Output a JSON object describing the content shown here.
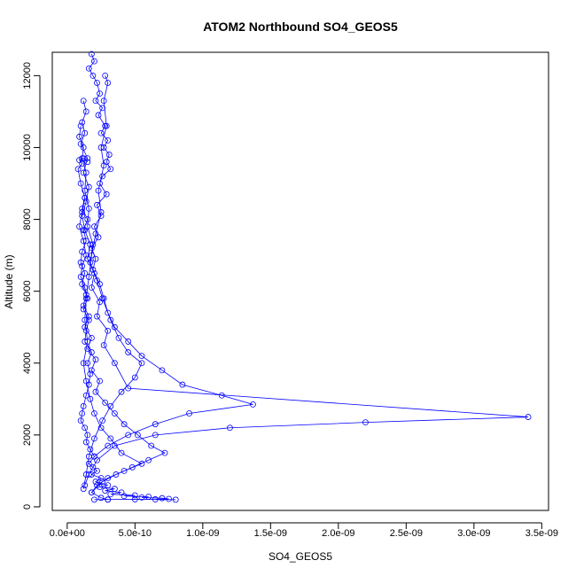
{
  "chart_data": {
    "type": "line",
    "title": "ATOM2 Northbound SO4_GEOS5",
    "xlabel": "SO4_GEOS5",
    "ylabel": "Altitude (m)",
    "xlim": [
      -1.1e-10,
      3.55e-09
    ],
    "ylim": [
      -100,
      12650
    ],
    "x_ticks": [
      0,
      5e-10,
      1e-09,
      1.5e-09,
      2e-09,
      2.5e-09,
      3e-09,
      3.5e-09
    ],
    "x_tick_labels": [
      "0.0e+00",
      "5.0e-10",
      "1.0e-09",
      "1.5e-09",
      "2.0e-09",
      "2.5e-09",
      "3.0e-09",
      "3.5e-09"
    ],
    "y_ticks": [
      0,
      2000,
      4000,
      6000,
      8000,
      10000,
      12000
    ],
    "y_tick_labels": [
      "0",
      "2000",
      "4000",
      "6000",
      "8000",
      "10000",
      "12000"
    ],
    "marker": "open-circle",
    "color": "#0000ff",
    "grid": false,
    "legend": "none",
    "series": [
      {
        "x": [
          1.5e-10,
          1.2e-10,
          9e-11,
          1.1e-10,
          8e-11,
          1e-10,
          1.3e-10,
          1.1e-10,
          9e-11,
          1.2e-10,
          1.4e-10,
          1.1e-10,
          1e-10,
          1.3e-10,
          1.5e-10,
          1.2e-10,
          1.6e-10,
          1.4e-10,
          1.3e-10,
          1.8e-10,
          1.5e-10,
          1.7e-10,
          1.6e-10,
          1.4e-10,
          1.2e-10,
          1.1e-10,
          1e-10,
          1.3e-10,
          1.5e-10,
          1.4e-10,
          1.7e-10,
          2e-10,
          1.6e-10,
          1.9e-10,
          2.2e-10,
          1.8e-10,
          2.5e-10,
          2.1e-10,
          3e-10,
          2.4e-10,
          3.5e-10,
          2.8e-10,
          4e-10,
          3.2e-10,
          5e-10,
          4.2e-10,
          6e-10,
          5.5e-10,
          7e-10,
          7.5e-10,
          6.5e-10,
          8e-10,
          5e-10,
          3e-10,
          2e-10
        ],
        "y": [
          9600,
          9700,
          9650,
          9550,
          9400,
          9000,
          8600,
          8200,
          7800,
          7400,
          7000,
          6700,
          6400,
          6100,
          5800,
          5500,
          5200,
          4900,
          4600,
          4300,
          4000,
          3700,
          3400,
          3100,
          2800,
          2600,
          2400,
          2200,
          2000,
          1800,
          1600,
          1400,
          1200,
          1100,
          1000,
          900,
          800,
          700,
          600,
          550,
          500,
          450,
          400,
          350,
          320,
          300,
          280,
          260,
          240,
          220,
          210,
          200,
          210,
          205,
          200
        ]
      },
      {
        "x": [
          1.8e-10,
          2e-10,
          1.6e-10,
          1.9e-10,
          2.2e-10,
          2.4e-10,
          2.1e-10,
          2.6e-10,
          2.3e-10,
          2.8e-10,
          2.5e-10,
          3e-10,
          2.7e-10,
          3.1e-10,
          2.9e-10,
          3.2e-10,
          2.6e-10,
          2.4e-10,
          2.9e-10,
          2.2e-10,
          2.5e-10,
          2e-10,
          2.3e-10,
          1.8e-10,
          2.1e-10,
          1.9e-10,
          2.4e-10,
          2.7e-10,
          3e-10,
          3.5e-10,
          4.5e-10,
          5.5e-10,
          7e-10,
          8.5e-10,
          1.14e-09,
          1.37e-09,
          9e-10,
          6.5e-10,
          4.5e-10,
          3e-10,
          2e-10
        ],
        "y": [
          12600,
          12400,
          12200,
          12000,
          11800,
          11500,
          11300,
          11100,
          10900,
          10600,
          10400,
          10200,
          10000,
          9800,
          9600,
          9400,
          9200,
          9000,
          8700,
          8400,
          8100,
          7800,
          7500,
          7200,
          6900,
          6600,
          6200,
          5800,
          5400,
          5000,
          4600,
          4200,
          3800,
          3400,
          3100,
          2850,
          2600,
          2300,
          2000,
          1700,
          1400
        ]
      },
      {
        "x": [
          1.2e-10,
          1.4e-10,
          1.1e-10,
          1.3e-10,
          1e-10,
          1.5e-10,
          1.2e-10,
          1.6e-10,
          1.4e-10,
          1.1e-10,
          1.3e-10,
          1.7e-10,
          1.5e-10,
          2e-10,
          1.8e-10,
          2.4e-10,
          2.2e-10,
          3e-10,
          2.7e-10,
          3.5e-10,
          4.5e-10,
          3.4e-09,
          2.2e-09,
          1.2e-09,
          6.5e-10,
          3.5e-10,
          2.2e-10,
          1.6e-10,
          1.3e-10
        ],
        "y": [
          11300,
          11000,
          10700,
          10400,
          10100,
          9700,
          9300,
          8900,
          8500,
          8100,
          7700,
          7300,
          6900,
          6500,
          6100,
          5700,
          5300,
          4900,
          4500,
          4000,
          3300,
          2500,
          2350,
          2200,
          2000,
          1700,
          1300,
          900,
          600
        ]
      },
      {
        "x": [
          1e-10,
          9e-11,
          1.2e-10,
          1.1e-10,
          1.4e-10,
          1.3e-10,
          1.6e-10,
          1.5e-10,
          1.9e-10,
          1.7e-10,
          2.2e-10,
          2.6e-10,
          3.2e-10,
          3.8e-10,
          4.5e-10,
          5.5e-10,
          5e-10,
          4e-10,
          3.2e-10,
          2.6e-10,
          2e-10,
          1.6e-10,
          1.4e-10,
          1.2e-10
        ],
        "y": [
          10600,
          10300,
          10000,
          9700,
          9300,
          8800,
          8300,
          7800,
          7300,
          6800,
          6300,
          5800,
          5200,
          4700,
          4300,
          4000,
          3600,
          3200,
          2800,
          2400,
          1900,
          1400,
          900,
          500
        ]
      },
      {
        "x": [
          2.8e-10,
          3e-10,
          2.7e-10,
          2.9e-10,
          2.5e-10,
          2.7e-10,
          2.3e-10,
          2.5e-10,
          2.1e-10,
          1.8e-10,
          1.6e-10,
          1.4e-10,
          1.3e-10,
          1.5e-10,
          1.2e-10,
          1.4e-10,
          1.7e-10,
          2e-10,
          2.5e-10,
          3.2e-10,
          4e-10,
          5.5e-10,
          4.2e-10,
          3e-10,
          2.2e-10,
          1.8e-10,
          2.5e-10,
          3e-10
        ],
        "y": [
          12000,
          11800,
          11300,
          10600,
          10000,
          9500,
          8800,
          8200,
          7600,
          7000,
          6400,
          5800,
          5200,
          4600,
          4000,
          3500,
          3000,
          2600,
          2200,
          1900,
          1500,
          1200,
          1000,
          800,
          600,
          400,
          250,
          200
        ]
      },
      {
        "x": [
          1.3e-10,
          1.1e-10,
          1.5e-10,
          1.2e-10,
          1.4e-10,
          1.1e-10,
          1e-10,
          1.3e-10,
          1.1e-10,
          1.4e-10,
          1.2e-10,
          1.6e-10,
          1.3e-10,
          1.8e-10,
          1.5e-10,
          2.1e-10,
          1.8e-10,
          2.4e-10,
          2.1e-10,
          2.8e-10,
          3.5e-10,
          4.2e-10,
          5.2e-10,
          6.2e-10,
          7.2e-10,
          6e-10,
          4.8e-10,
          3.6e-10,
          2.6e-10,
          1.8e-10
        ],
        "y": [
          8600,
          8300,
          8000,
          7700,
          7400,
          7100,
          6800,
          6500,
          6200,
          5900,
          5600,
          5300,
          5000,
          4700,
          4400,
          4100,
          3800,
          3500,
          3200,
          2900,
          2600,
          2300,
          2000,
          1700,
          1500,
          1300,
          1100,
          900,
          700,
          400
        ]
      }
    ]
  }
}
